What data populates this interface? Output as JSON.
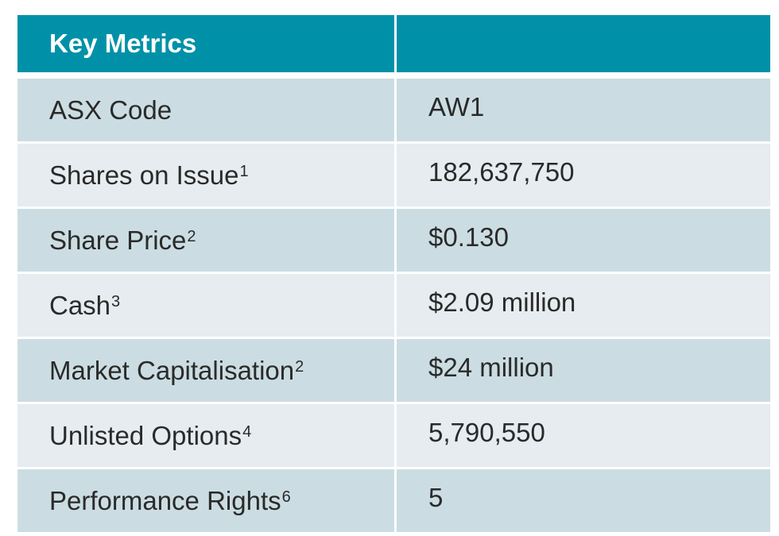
{
  "table": {
    "header": {
      "col1": "Key Metrics",
      "col2": ""
    },
    "rows": [
      {
        "label": "ASX Code",
        "footnote": "",
        "value": "AW1"
      },
      {
        "label": "Shares on Issue",
        "footnote": "1",
        "value": "182,637,750"
      },
      {
        "label": "Share Price",
        "footnote": "2",
        "value": "$0.130"
      },
      {
        "label": "Cash",
        "footnote": "3",
        "value": "$2.09 million"
      },
      {
        "label": "Market Capitalisation",
        "footnote": "2",
        "value": "$24 million"
      },
      {
        "label": "Unlisted Options",
        "footnote": "4",
        "value": "5,790,550"
      },
      {
        "label": "Performance Rights",
        "footnote": "6",
        "value": "5"
      }
    ]
  },
  "colors": {
    "header_bg": "#0091a8",
    "row_odd_bg": "#cbdde2",
    "row_even_bg": "#e6ecef"
  }
}
